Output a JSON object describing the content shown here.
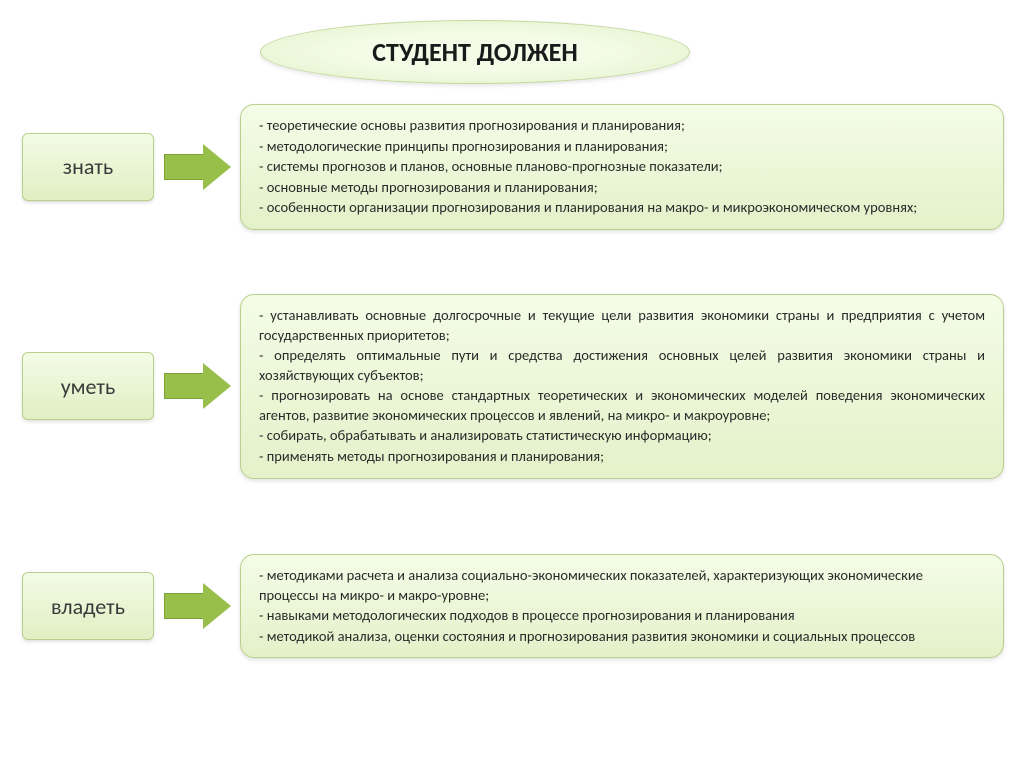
{
  "title": "СТУДЕНТ ДОЛЖЕН",
  "colors": {
    "box_bg_top": "#f4fce7",
    "box_bg_bottom": "#e1efc3",
    "box_border": "#b9d08c",
    "arrow_fill": "#97bf4a",
    "title_text": "#1a1a1a",
    "body_text": "#2a2a2a"
  },
  "typography": {
    "title_fontsize": 26,
    "label_fontsize": 22,
    "body_fontsize": 14.5,
    "font_family": "Calibri"
  },
  "rows": [
    {
      "label": "знать",
      "lines": [
        "-                     теоретические основы развития прогнозирования и планирования;",
        "-                     методологические принципы прогнозирования и планирования;",
        "-                     системы прогнозов и планов, основные планово-прогнозные показатели;",
        "-                     основные методы прогнозирования и планирования;",
        "-                     особенности организации прогнозирования и планирования на макро- и микроэкономическом уровнях;"
      ]
    },
    {
      "label": "уметь",
      "lines": [
        "-           устанавливать основные долгосрочные и текущие цели развития экономики страны и предприятия с учетом государственных приоритетов;",
        "-             определять оптимальные пути и средства достижения основных целей развития экономики страны и хозяйствующих субъектов;",
        "-            прогнозировать на основе стандартных теоретических и экономических моделей поведения экономических агентов, развитие экономических процессов и явлений, на микро- и макроуровне;",
        "   -  собирать, обрабатывать и анализировать статистическую информацию;",
        "-                   применять методы прогнозирования и планирования;"
      ]
    },
    {
      "label": "владеть",
      "lines": [
        "-                   методиками расчета и анализа социально-экономических показателей, характеризующих экономические процессы на микро- и макро-уровне;",
        "     - навыками методологических подходов в процессе прогнозирования и планирования",
        "    - методикой анализа, оценки состояния и прогнозирования развития экономики и социальных процессов"
      ]
    }
  ]
}
